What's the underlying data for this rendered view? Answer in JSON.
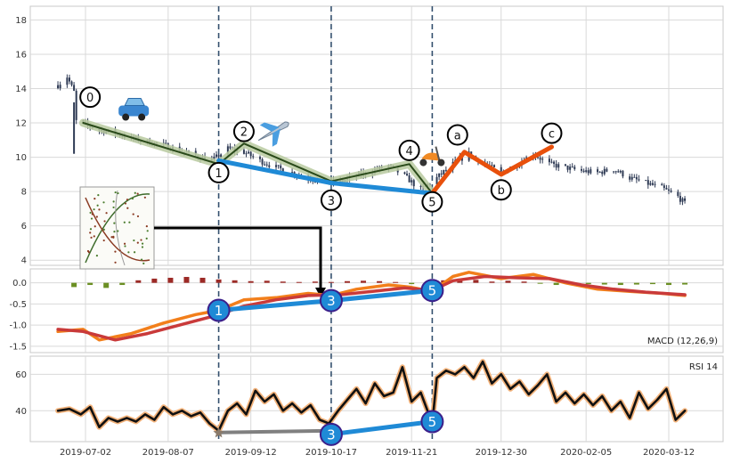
{
  "chart_data": [
    {
      "id": "price",
      "type": "candlestick",
      "ylim": [
        3.7,
        18.8
      ],
      "yticks": [
        "4",
        "6",
        "8",
        "10",
        "12",
        "14",
        "16",
        "18"
      ],
      "close_series": [
        [
          "2019-06-20",
          14.2
        ],
        [
          "2019-06-24",
          14.7
        ],
        [
          "2019-06-27",
          13.8
        ],
        [
          "2019-06-28",
          12.1
        ],
        [
          "2019-07-02",
          11.9
        ],
        [
          "2019-07-08",
          11.6
        ],
        [
          "2019-07-15",
          11.4
        ],
        [
          "2019-07-22",
          11.1
        ],
        [
          "2019-07-29",
          10.9
        ],
        [
          "2019-08-05",
          10.7
        ],
        [
          "2019-08-12",
          10.4
        ],
        [
          "2019-08-19",
          10.1
        ],
        [
          "2019-08-26",
          9.8
        ],
        [
          "2019-09-02",
          10.5
        ],
        [
          "2019-09-09",
          10.3
        ],
        [
          "2019-09-16",
          9.8
        ],
        [
          "2019-09-23",
          9.4
        ],
        [
          "2019-09-30",
          9.1
        ],
        [
          "2019-10-07",
          8.8
        ],
        [
          "2019-10-14",
          8.5
        ],
        [
          "2019-10-21",
          8.6
        ],
        [
          "2019-10-28",
          8.9
        ],
        [
          "2019-11-04",
          9.2
        ],
        [
          "2019-11-11",
          9.5
        ],
        [
          "2019-11-18",
          8.9
        ],
        [
          "2019-11-25",
          8.1
        ],
        [
          "2019-12-02",
          8.8
        ],
        [
          "2019-12-09",
          9.6
        ],
        [
          "2019-12-16",
          10.2
        ],
        [
          "2019-12-23",
          9.6
        ],
        [
          "2019-12-30",
          9.1
        ],
        [
          "2020-01-06",
          9.6
        ],
        [
          "2020-01-13",
          10.2
        ],
        [
          "2020-01-20",
          9.6
        ],
        [
          "2020-02-03",
          9.2
        ],
        [
          "2020-02-10",
          9.1
        ],
        [
          "2020-02-17",
          9.3
        ],
        [
          "2020-02-24",
          8.8
        ],
        [
          "2020-03-02",
          8.5
        ],
        [
          "2020-03-09",
          8.2
        ],
        [
          "2020-03-16",
          7.7
        ],
        [
          "2020-03-19",
          7.3
        ]
      ],
      "elliott_wave": {
        "impulse": [
          [
            "2019-06-27",
            13.5
          ],
          [
            "2019-07-01",
            12.0
          ],
          [
            "2019-08-29",
            9.6
          ],
          [
            "2019-09-09",
            10.8
          ],
          [
            "2019-10-17",
            8.6
          ],
          [
            "2019-11-20",
            9.6
          ],
          [
            "2019-11-30",
            7.9
          ]
        ],
        "labels": [
          "0",
          "1",
          "2",
          "3",
          "4",
          "5"
        ],
        "corrective": [
          [
            "2019-11-30",
            7.9
          ],
          [
            "2019-12-14",
            10.3
          ],
          [
            "2019-12-30",
            9.0
          ],
          [
            "2020-01-21",
            10.6
          ]
        ],
        "corrective_labels": [
          "a",
          "b",
          "c"
        ],
        "trend_135": [
          [
            "2019-08-29",
            9.8
          ],
          [
            "2019-10-17",
            8.5
          ],
          [
            "2019-11-30",
            7.9
          ]
        ]
      },
      "markers": [
        "car-emoji",
        "airplane-emoji",
        "scooter-emoji"
      ],
      "inset": "scatter-thumbnail"
    },
    {
      "id": "macd",
      "type": "line",
      "label": "MACD (12,26,9)",
      "ylim": [
        -1.65,
        0.33
      ],
      "yticks": [
        "0.0",
        "-0.5",
        "-1.0",
        "-1.5"
      ],
      "series": [
        {
          "values": [
            [
              "2019-06-20",
              -1.15
            ],
            [
              "2019-07-01",
              -1.1
            ],
            [
              "2019-07-08",
              -1.35
            ],
            [
              "2019-07-22",
              -1.2
            ],
            [
              "2019-08-05",
              -0.95
            ],
            [
              "2019-08-19",
              -0.75
            ],
            [
              "2019-08-29",
              -0.65
            ],
            [
              "2019-09-09",
              -0.4
            ],
            [
              "2019-09-23",
              -0.35
            ],
            [
              "2019-10-07",
              -0.25
            ],
            [
              "2019-10-17",
              -0.3
            ],
            [
              "2019-10-28",
              -0.15
            ],
            [
              "2019-11-11",
              -0.05
            ],
            [
              "2019-11-20",
              -0.1
            ],
            [
              "2019-11-30",
              -0.2
            ],
            [
              "2019-12-09",
              0.15
            ],
            [
              "2019-12-16",
              0.25
            ],
            [
              "2019-12-30",
              0.1
            ],
            [
              "2020-01-13",
              0.2
            ],
            [
              "2020-01-27",
              0.0
            ],
            [
              "2020-02-10",
              -0.15
            ],
            [
              "2020-02-24",
              -0.2
            ],
            [
              "2020-03-09",
              -0.25
            ],
            [
              "2020-03-19",
              -0.3
            ]
          ]
        },
        {
          "values": [
            [
              "2019-06-20",
              -1.1
            ],
            [
              "2019-07-01",
              -1.15
            ],
            [
              "2019-07-15",
              -1.35
            ],
            [
              "2019-07-29",
              -1.2
            ],
            [
              "2019-08-12",
              -1.0
            ],
            [
              "2019-08-26",
              -0.8
            ],
            [
              "2019-09-09",
              -0.55
            ],
            [
              "2019-09-23",
              -0.4
            ],
            [
              "2019-10-07",
              -0.3
            ],
            [
              "2019-10-21",
              -0.28
            ],
            [
              "2019-11-04",
              -0.2
            ],
            [
              "2019-11-18",
              -0.12
            ],
            [
              "2019-11-30",
              -0.18
            ],
            [
              "2019-12-09",
              0.05
            ],
            [
              "2019-12-23",
              0.15
            ],
            [
              "2020-01-06",
              0.12
            ],
            [
              "2020-01-20",
              0.1
            ],
            [
              "2020-02-03",
              -0.05
            ],
            [
              "2020-02-17",
              -0.15
            ],
            [
              "2020-03-02",
              -0.22
            ],
            [
              "2020-03-19",
              -0.28
            ]
          ]
        }
      ],
      "histogram": [
        [
          "2019-06-27",
          -0.1
        ],
        [
          "2019-07-04",
          -0.05
        ],
        [
          "2019-07-11",
          -0.12
        ],
        [
          "2019-07-18",
          -0.05
        ],
        [
          "2019-07-25",
          0.06
        ],
        [
          "2019-08-01",
          0.1
        ],
        [
          "2019-08-08",
          0.12
        ],
        [
          "2019-08-15",
          0.14
        ],
        [
          "2019-08-22",
          0.12
        ],
        [
          "2019-08-29",
          0.08
        ],
        [
          "2019-09-05",
          0.06
        ],
        [
          "2019-09-12",
          0.04
        ],
        [
          "2019-09-19",
          0.05
        ],
        [
          "2019-09-26",
          0.03
        ],
        [
          "2019-10-03",
          0.02
        ],
        [
          "2019-10-10",
          0.03
        ],
        [
          "2019-10-17",
          0.02
        ],
        [
          "2019-10-24",
          0.04
        ],
        [
          "2019-10-31",
          0.05
        ],
        [
          "2019-11-07",
          0.04
        ],
        [
          "2019-11-14",
          0.02
        ],
        [
          "2019-11-21",
          -0.03
        ],
        [
          "2019-11-28",
          -0.04
        ],
        [
          "2019-12-05",
          0.06
        ],
        [
          "2019-12-12",
          0.1
        ],
        [
          "2019-12-19",
          0.07
        ],
        [
          "2019-12-26",
          0.03
        ],
        [
          "2020-01-02",
          0.05
        ],
        [
          "2020-01-09",
          0.03
        ],
        [
          "2020-01-16",
          -0.02
        ],
        [
          "2020-01-23",
          -0.05
        ],
        [
          "2020-01-30",
          -0.04
        ],
        [
          "2020-02-06",
          -0.03
        ],
        [
          "2020-02-13",
          -0.04
        ],
        [
          "2020-02-20",
          -0.05
        ],
        [
          "2020-02-27",
          -0.04
        ],
        [
          "2020-03-05",
          -0.03
        ],
        [
          "2020-03-12",
          -0.05
        ],
        [
          "2020-03-19",
          -0.04
        ]
      ],
      "trend_135": [
        [
          "2019-08-29",
          -0.65
        ],
        [
          "2019-10-17",
          -0.42
        ],
        [
          "2019-11-30",
          -0.18
        ]
      ],
      "trend_labels": [
        "1",
        "3",
        "5"
      ]
    },
    {
      "id": "rsi",
      "type": "line",
      "label": "RSI 14",
      "ylim": [
        23,
        70
      ],
      "yticks": [
        "60",
        "40"
      ],
      "series": [
        {
          "values": [
            [
              "2019-06-20",
              40
            ],
            [
              "2019-06-25",
              41
            ],
            [
              "2019-06-30",
              38
            ],
            [
              "2019-07-04",
              42
            ],
            [
              "2019-07-08",
              31
            ],
            [
              "2019-07-12",
              36
            ],
            [
              "2019-07-16",
              34
            ],
            [
              "2019-07-20",
              36
            ],
            [
              "2019-07-24",
              34
            ],
            [
              "2019-07-28",
              38
            ],
            [
              "2019-08-01",
              35
            ],
            [
              "2019-08-05",
              42
            ],
            [
              "2019-08-09",
              38
            ],
            [
              "2019-08-13",
              40
            ],
            [
              "2019-08-17",
              37
            ],
            [
              "2019-08-21",
              39
            ],
            [
              "2019-08-25",
              33
            ],
            [
              "2019-08-29",
              29
            ],
            [
              "2019-09-02",
              40
            ],
            [
              "2019-09-06",
              44
            ],
            [
              "2019-09-10",
              38
            ],
            [
              "2019-09-14",
              51
            ],
            [
              "2019-09-18",
              45
            ],
            [
              "2019-09-22",
              49
            ],
            [
              "2019-09-26",
              40
            ],
            [
              "2019-09-30",
              44
            ],
            [
              "2019-10-04",
              39
            ],
            [
              "2019-10-08",
              43
            ],
            [
              "2019-10-12",
              35
            ],
            [
              "2019-10-16",
              33
            ],
            [
              "2019-10-20",
              40
            ],
            [
              "2019-10-24",
              46
            ],
            [
              "2019-10-28",
              52
            ],
            [
              "2019-11-01",
              44
            ],
            [
              "2019-11-05",
              55
            ],
            [
              "2019-11-09",
              48
            ],
            [
              "2019-11-13",
              50
            ],
            [
              "2019-11-17",
              64
            ],
            [
              "2019-11-21",
              45
            ],
            [
              "2019-11-25",
              50
            ],
            [
              "2019-11-30",
              33
            ],
            [
              "2019-12-02",
              58
            ],
            [
              "2019-12-06",
              62
            ],
            [
              "2019-12-10",
              60
            ],
            [
              "2019-12-14",
              64
            ],
            [
              "2019-12-18",
              58
            ],
            [
              "2019-12-22",
              67
            ],
            [
              "2019-12-26",
              55
            ],
            [
              "2019-12-30",
              60
            ],
            [
              "2020-01-03",
              52
            ],
            [
              "2020-01-07",
              56
            ],
            [
              "2020-01-11",
              49
            ],
            [
              "2020-01-15",
              54
            ],
            [
              "2020-01-19",
              60
            ],
            [
              "2020-01-23",
              45
            ],
            [
              "2020-01-27",
              50
            ],
            [
              "2020-01-31",
              44
            ],
            [
              "2020-02-04",
              49
            ],
            [
              "2020-02-08",
              43
            ],
            [
              "2020-02-12",
              48
            ],
            [
              "2020-02-16",
              40
            ],
            [
              "2020-02-20",
              45
            ],
            [
              "2020-02-24",
              36
            ],
            [
              "2020-02-28",
              50
            ],
            [
              "2020-03-03",
              41
            ],
            [
              "2020-03-07",
              46
            ],
            [
              "2020-03-11",
              52
            ],
            [
              "2020-03-15",
              35
            ],
            [
              "2020-03-19",
              40
            ]
          ]
        }
      ],
      "trend_135": [
        [
          "2019-10-17",
          27
        ],
        [
          "2019-11-30",
          34
        ]
      ],
      "trend_labels": [
        "3",
        "5"
      ],
      "extra_segment": [
        [
          "2019-08-29",
          28
        ],
        [
          "2019-10-17",
          29
        ]
      ]
    }
  ],
  "x_axis": {
    "ticks": [
      {
        "date": "2019-07-02",
        "label": "2019-07-02"
      },
      {
        "date": "2019-08-07",
        "label": "2019-08-07"
      },
      {
        "date": "2019-09-12",
        "label": "2019-09-12"
      },
      {
        "date": "2019-10-17",
        "label": "2019-10-17"
      },
      {
        "date": "2019-11-21",
        "label": "2019-11-21"
      },
      {
        "date": "2019-12-30",
        "label": "2019-12-30"
      },
      {
        "date": "2020-02-05",
        "label": "2020-02-05"
      },
      {
        "date": "2020-03-12",
        "label": "2020-03-12"
      }
    ],
    "vlines": [
      "2019-08-29",
      "2019-10-17",
      "2019-11-30"
    ]
  },
  "colors": {
    "candle": "#2f3b55",
    "trend_blue": "#1f8ad6",
    "corrective_orange": "#e8500c",
    "wave_green": "#2a4a1a",
    "wave_band": "#b8caa0",
    "macd_orange": "#f27f1b",
    "macd_red": "#c93a3a",
    "hist_pos": "#9c2a26",
    "hist_neg": "#6b8f23",
    "rsi_line": "#111111",
    "rsi_glow": "#f2b27a",
    "grid": "#d9d9d9",
    "vline": "#34506e",
    "badge_edge": "#3b1f8a"
  }
}
